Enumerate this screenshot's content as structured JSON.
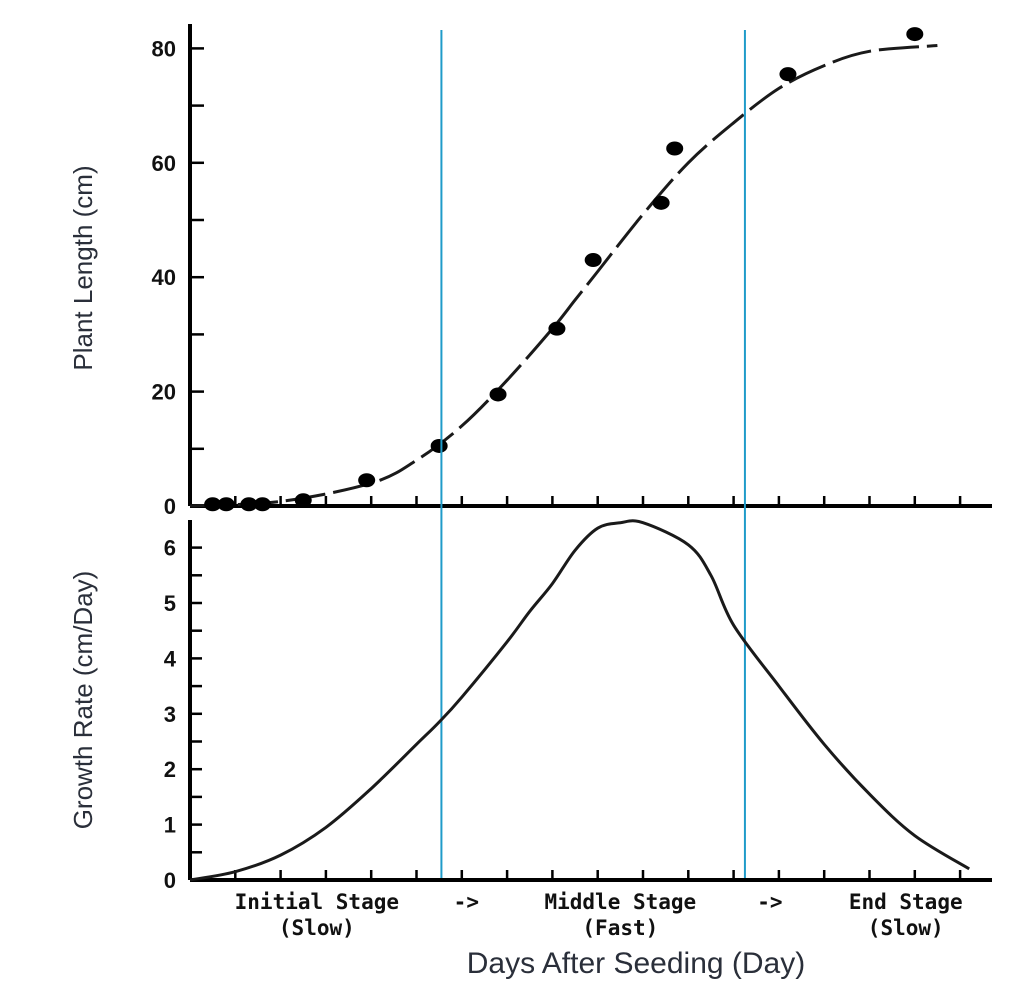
{
  "chart_data": [
    {
      "id": "top",
      "type": "scatter",
      "title": "",
      "ylabel": "Plant Length (cm)",
      "ylim": [
        0,
        85
      ],
      "yticks": [
        0,
        20,
        40,
        60,
        80
      ],
      "points": [
        {
          "x": 0.5,
          "y": 0.3
        },
        {
          "x": 0.8,
          "y": 0.3
        },
        {
          "x": 1.3,
          "y": 0.3
        },
        {
          "x": 1.6,
          "y": 0.3
        },
        {
          "x": 2.5,
          "y": 1.0
        },
        {
          "x": 3.9,
          "y": 4.5
        },
        {
          "x": 5.5,
          "y": 10.5
        },
        {
          "x": 6.8,
          "y": 19.5
        },
        {
          "x": 8.1,
          "y": 31.0
        },
        {
          "x": 8.9,
          "y": 43.0
        },
        {
          "x": 10.4,
          "y": 53.0
        },
        {
          "x": 10.7,
          "y": 62.5
        },
        {
          "x": 13.2,
          "y": 75.5
        },
        {
          "x": 16.0,
          "y": 82.5
        }
      ],
      "fitted_curve": {
        "x": [
          0,
          2,
          4,
          5,
          6,
          7,
          8,
          8.5,
          9,
          10,
          11,
          12,
          13,
          14,
          15,
          16.5
        ],
        "y": [
          0,
          0.8,
          4,
          8,
          14,
          22,
          31,
          36,
          41,
          51,
          60,
          67,
          73,
          77,
          79.5,
          80.5
        ]
      }
    },
    {
      "id": "bottom",
      "type": "line",
      "ylabel": "Growth Rate (cm/Day)",
      "ylim": [
        0,
        6.6
      ],
      "yticks": [
        0,
        1,
        2,
        3,
        4,
        5,
        6
      ],
      "series": [
        {
          "name": "growth-rate",
          "x": [
            0,
            1,
            2,
            3,
            4,
            5,
            5.5,
            6,
            7,
            7.5,
            8,
            8.5,
            9,
            9.5,
            10,
            11,
            11.5,
            12,
            13,
            14,
            15,
            16,
            17.2
          ],
          "y": [
            0,
            0.15,
            0.45,
            0.95,
            1.65,
            2.45,
            2.85,
            3.3,
            4.3,
            4.85,
            5.35,
            5.95,
            6.35,
            6.45,
            6.45,
            6.05,
            5.5,
            4.6,
            3.5,
            2.45,
            1.55,
            0.8,
            0.2
          ]
        }
      ],
      "stage_boundaries": [
        5.55,
        12.25
      ]
    }
  ],
  "xaxis": {
    "xlim": [
      0,
      17.3
    ],
    "xticks": [
      0,
      1,
      2,
      3,
      4,
      5,
      6,
      7,
      8,
      9,
      10,
      11,
      12,
      13,
      14,
      15,
      16,
      17
    ],
    "xlabel": "Days After Seeding (Day)",
    "tick_labels": [
      {
        "x": 2.8,
        "lines": [
          "Initial Stage",
          "(Slow)"
        ]
      },
      {
        "x": 6.1,
        "lines": [
          "->"
        ]
      },
      {
        "x": 9.5,
        "lines": [
          "Middle Stage",
          "(Fast)"
        ]
      },
      {
        "x": 12.8,
        "lines": [
          "->"
        ]
      },
      {
        "x": 15.8,
        "lines": [
          "End Stage",
          "(Slow)"
        ]
      }
    ]
  },
  "colors": {
    "axis": "#000000",
    "curve": "#1a1a1a",
    "points": "#000000",
    "boundary": "#1f9bc9"
  }
}
